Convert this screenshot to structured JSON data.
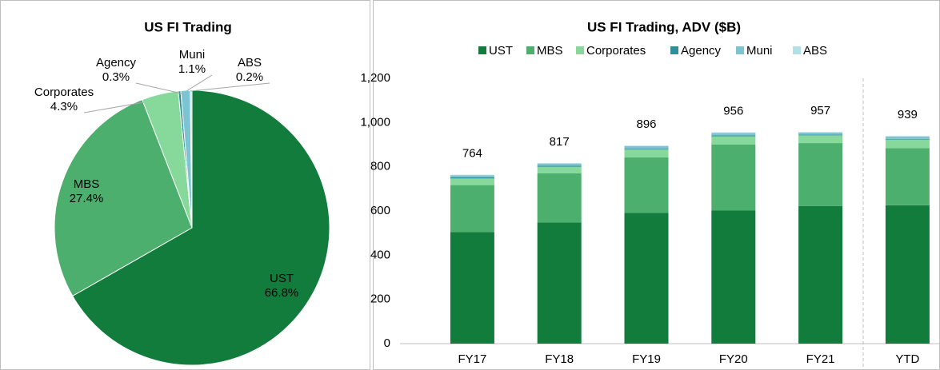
{
  "chart_data": [
    {
      "type": "pie",
      "title": "US FI Trading",
      "categories": [
        "UST",
        "MBS",
        "Corporates",
        "Agency",
        "Muni",
        "ABS"
      ],
      "values": [
        66.8,
        27.4,
        4.3,
        0.3,
        1.1,
        0.2
      ],
      "value_labels": [
        "66.8%",
        "27.4%",
        "4.3%",
        "0.3%",
        "1.1%",
        "0.2%"
      ],
      "colors": [
        "#127c3c",
        "#4daf6d",
        "#86d99b",
        "#2f8f99",
        "#7cc4d1",
        "#b1e0e6"
      ]
    },
    {
      "type": "bar",
      "stacked": true,
      "title": "US FI Trading, ADV ($B)",
      "categories": [
        "FY17",
        "FY18",
        "FY19",
        "FY20",
        "FY21",
        "YTD"
      ],
      "series": [
        {
          "name": "UST",
          "color": "#127c3c",
          "values": [
            505,
            548,
            592,
            603,
            622,
            626
          ]
        },
        {
          "name": "MBS",
          "color": "#4daf6d",
          "values": [
            212,
            222,
            250,
            297,
            285,
            258
          ]
        },
        {
          "name": "Corporates",
          "color": "#86d99b",
          "values": [
            30,
            30,
            37,
            38,
            35,
            39
          ]
        },
        {
          "name": "Agency",
          "color": "#2f8f99",
          "values": [
            5,
            5,
            4,
            4,
            3,
            3
          ]
        },
        {
          "name": "Muni",
          "color": "#7cc4d1",
          "values": [
            9,
            9,
            10,
            11,
            10,
            11
          ]
        },
        {
          "name": "ABS",
          "color": "#b1e0e6",
          "values": [
            3,
            3,
            3,
            3,
            2,
            2
          ]
        }
      ],
      "totals": [
        764,
        817,
        896,
        956,
        957,
        939
      ],
      "ylim": [
        0,
        1200
      ],
      "yticks": [
        0,
        200,
        400,
        600,
        800,
        {
          "value": 1000,
          "label": "1,000"
        },
        {
          "value": 1200,
          "label": "1,200"
        }
      ],
      "grid": false
    }
  ]
}
